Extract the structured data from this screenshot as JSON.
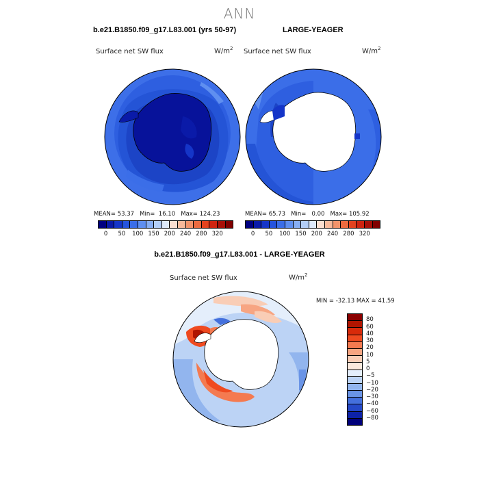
{
  "season": "ANN",
  "top_left": {
    "case_title": "b.e21.B1850.f09_g17.L83.001 (yrs 50-97)",
    "panel_title": "Surface net SW flux",
    "units": "W/m",
    "units_exp": "2",
    "stats": {
      "mean_label": "MEAN=",
      "mean": "53.37",
      "min_label": "Min=",
      "min": "16.10",
      "max_label": "Max=",
      "max": "124.23"
    }
  },
  "top_right": {
    "case_title": "LARGE-YEAGER",
    "panel_title": "Surface net SW flux",
    "units": "W/m",
    "units_exp": "2",
    "stats": {
      "mean_label": "MEAN=",
      "mean": "65.73",
      "min_label": "Min=",
      "min": "0.00",
      "max_label": "Max=",
      "max": "105.92"
    }
  },
  "top_colorbar": {
    "ticks": [
      "0",
      "50",
      "100",
      "150",
      "200",
      "240",
      "280",
      "320"
    ],
    "colors": [
      "#000080",
      "#0a1aa8",
      "#1535c8",
      "#2554dd",
      "#3b6ee8",
      "#5f8ff0",
      "#87aef3",
      "#b3cef7",
      "#dde9fa",
      "#fbdfd0",
      "#f8b99a",
      "#f2936a",
      "#ec6b40",
      "#e4431f",
      "#cf2410",
      "#a81008",
      "#800000"
    ]
  },
  "diff": {
    "case_title": "b.e21.B1850.f09_g17.L83.001 - LARGE-YEAGER",
    "panel_title": "Surface net SW flux",
    "units": "W/m",
    "units_exp": "2",
    "minmax": "MIN = -32.13  MAX =  41.59"
  },
  "diff_colorbar": {
    "labels": [
      "80",
      "60",
      "40",
      "30",
      "20",
      "10",
      "5",
      "0",
      "-5",
      "-10",
      "-20",
      "-30",
      "-40",
      "-60",
      "-80"
    ],
    "colors": [
      "#8a0000",
      "#b01500",
      "#d82a0a",
      "#ef4a20",
      "#f47a50",
      "#f7a582",
      "#f9cdb6",
      "#fbe9dd",
      "#e4eefb",
      "#bcd3f5",
      "#92b5ee",
      "#6a94e6",
      "#4470dd",
      "#2549c8",
      "#0d22a8",
      "#00007a"
    ]
  },
  "colors": {
    "ocean_mean": "#2e5fe0",
    "ocean_light": "#4a7cec",
    "ocean_dark": "#1a3bc0",
    "land_navy": "#07129a",
    "land_white": "#ffffff",
    "coast": "#000000"
  }
}
